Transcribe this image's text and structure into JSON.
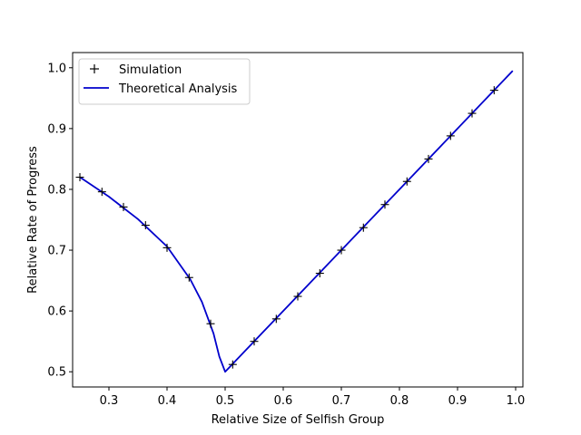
{
  "chart_data": {
    "type": "line",
    "xlabel": "Relative Size of Selfish Group",
    "ylabel": "Relative Rate of Progress",
    "xlim": [
      0.2375,
      1.0125
    ],
    "ylim": [
      0.475,
      1.025
    ],
    "x_ticks": [
      0.3,
      0.4,
      0.5,
      0.6,
      0.7,
      0.8,
      0.9,
      1.0
    ],
    "x_tick_labels": [
      "0.3",
      "0.4",
      "0.5",
      "0.6",
      "0.7",
      "0.8",
      "0.9",
      "1.0"
    ],
    "y_ticks": [
      0.5,
      0.6,
      0.7,
      0.8,
      0.9,
      1.0
    ],
    "y_tick_labels": [
      "0.5",
      "0.6",
      "0.7",
      "0.8",
      "0.9",
      "1.0"
    ],
    "grid": false,
    "legend_placement": "upper-left",
    "series": [
      {
        "name": "Simulation",
        "kind": "scatter",
        "marker": "plus",
        "color": "#000000",
        "x": [
          0.25,
          0.288,
          0.325,
          0.363,
          0.4,
          0.438,
          0.475,
          0.513,
          0.55,
          0.588,
          0.625,
          0.663,
          0.7,
          0.738,
          0.775,
          0.813,
          0.85,
          0.888,
          0.925,
          0.963
        ],
        "y": [
          0.82,
          0.796,
          0.771,
          0.741,
          0.704,
          0.655,
          0.579,
          0.512,
          0.55,
          0.587,
          0.624,
          0.662,
          0.7,
          0.737,
          0.775,
          0.813,
          0.85,
          0.888,
          0.925,
          0.963
        ]
      },
      {
        "name": "Theoretical Analysis",
        "kind": "line",
        "color": "#0000cc",
        "x": [
          0.25,
          0.3,
          0.35,
          0.4,
          0.44,
          0.46,
          0.48,
          0.49,
          0.5,
          0.55,
          0.6,
          0.7,
          0.8,
          0.9,
          0.995
        ],
        "y": [
          0.82,
          0.788,
          0.751,
          0.706,
          0.652,
          0.615,
          0.563,
          0.525,
          0.5,
          0.55,
          0.6,
          0.7,
          0.8,
          0.9,
          0.995
        ]
      }
    ]
  }
}
